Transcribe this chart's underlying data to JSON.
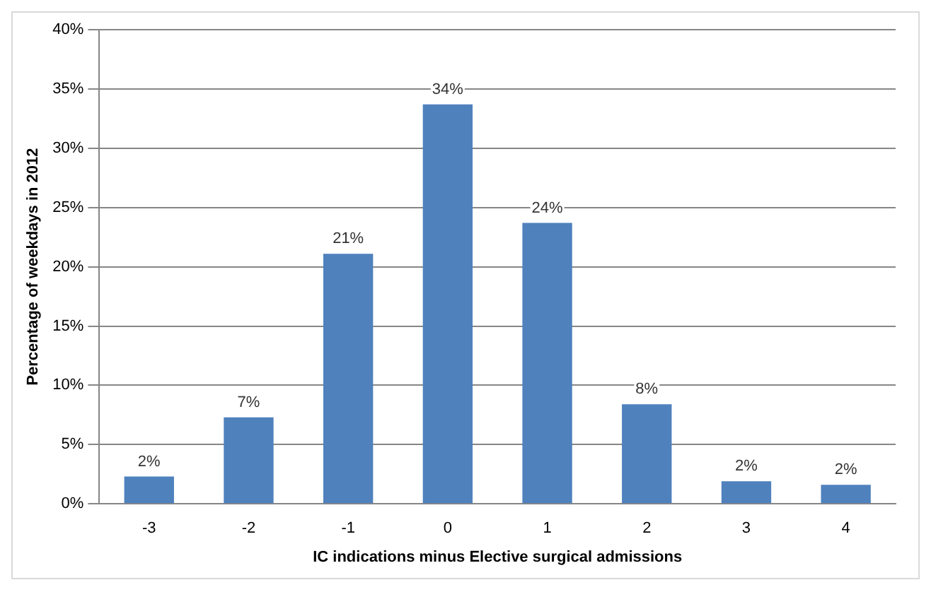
{
  "chart_data": {
    "type": "bar",
    "xlabel": "IC indications minus Elective surgical admissions",
    "ylabel": "Percentage of weekdays in 2012",
    "categories": [
      "-3",
      "-2",
      "-1",
      "0",
      "1",
      "2",
      "3",
      "4"
    ],
    "values": [
      2.3,
      7.3,
      21.1,
      33.7,
      23.7,
      8.4,
      1.9,
      1.6
    ],
    "value_labels": [
      "2%",
      "7%",
      "21%",
      "34%",
      "24%",
      "8%",
      "2%",
      "2%"
    ],
    "color": "#4f81bd",
    "ylim": [
      0,
      40
    ],
    "yticks": [
      {
        "value": 0,
        "label": "0%"
      },
      {
        "value": 5,
        "label": "5%"
      },
      {
        "value": 10,
        "label": "10%"
      },
      {
        "value": 15,
        "label": "15%"
      },
      {
        "value": 20,
        "label": "20%"
      },
      {
        "value": 25,
        "label": "25%"
      },
      {
        "value": 30,
        "label": "30%"
      },
      {
        "value": 35,
        "label": "35%"
      },
      {
        "value": 40,
        "label": "40%"
      }
    ],
    "grid": "y"
  }
}
